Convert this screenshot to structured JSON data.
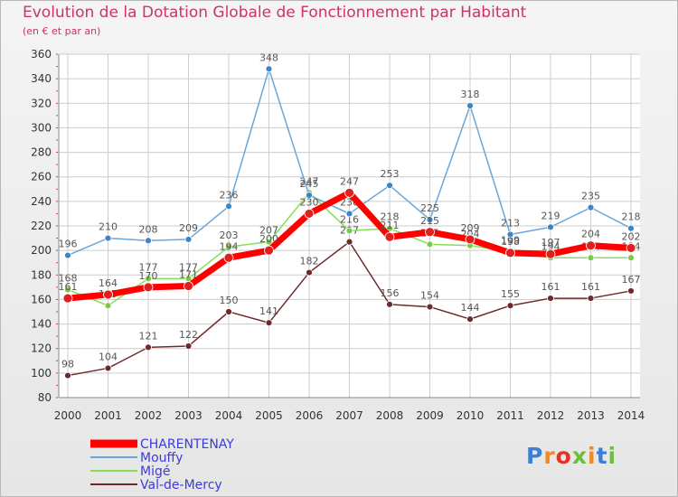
{
  "colors": {
    "title": "#cc3366",
    "legend_text": "#3b3bdb",
    "grid": "#cccccc",
    "value_labels": "#555555"
  },
  "brand": {
    "text": "Proxiti",
    "letter_colors": [
      "#3d7fd6",
      "#f08a24",
      "#e8302b",
      "#6cbf3a",
      "#f08a24",
      "#3d7fd6",
      "#6cbf3a"
    ]
  },
  "chart_data": {
    "type": "line",
    "title": "Evolution de la Dotation Globale de Fonctionnement par Habitant",
    "subtitle": "(en € et par an)",
    "x": [
      "2000",
      "2001",
      "2002",
      "2003",
      "2004",
      "2005",
      "2006",
      "2007",
      "2008",
      "2009",
      "2010",
      "2011",
      "2012",
      "2013",
      "2014"
    ],
    "ylim": [
      80,
      360
    ],
    "yticks": [
      80,
      100,
      120,
      140,
      160,
      180,
      200,
      220,
      240,
      260,
      280,
      300,
      320,
      340,
      360
    ],
    "grid": true,
    "legend_position": "bottom-left",
    "series": [
      {
        "name": "CHARENTENAY",
        "color": "#ff0000",
        "marker": "#e02020",
        "emphasis": true,
        "values": [
          161,
          164,
          170,
          171,
          194,
          200,
          230,
          247,
          211,
          215,
          209,
          198,
          197,
          204,
          202
        ]
      },
      {
        "name": "Mouffy",
        "color": "#6aa6d8",
        "marker": "#3d85c6",
        "values": [
          196,
          210,
          208,
          209,
          236,
          348,
          245,
          230,
          253,
          225,
          318,
          213,
          219,
          235,
          218
        ]
      },
      {
        "name": "Migé",
        "color": "#88dd55",
        "marker": "#77cc44",
        "values": [
          168,
          155,
          177,
          177,
          203,
          207,
          247,
          216,
          218,
          205,
          204,
          199,
          194,
          194,
          194
        ]
      },
      {
        "name": "Val-de-Mercy",
        "color": "#6e2a2a",
        "marker": "#6e2a2a",
        "values": [
          98,
          104,
          121,
          122,
          150,
          141,
          182,
          207,
          156,
          154,
          144,
          155,
          161,
          161,
          167
        ]
      }
    ]
  }
}
